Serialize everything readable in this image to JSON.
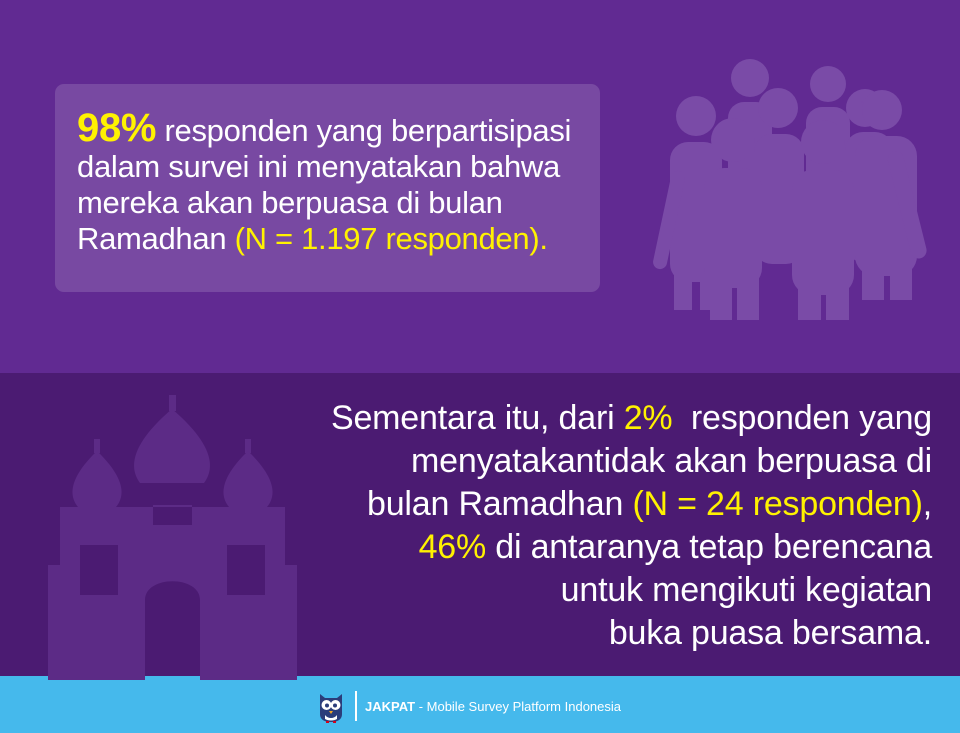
{
  "colors": {
    "top_background": "#612a92",
    "bottom_background": "#4b1b72",
    "footer_background": "#45b9ec",
    "highlight": "#fff200",
    "text": "#ffffff"
  },
  "top_card": {
    "percent": "98%",
    "text_1": " responden yang berpartisipasi dalam survei ini menyatakan bahwa mereka akan berpuasa di bulan Ramadhan ",
    "n_note": "(N = 1.197 responden)."
  },
  "bottom": {
    "line1_a": "Sementara itu, dari ",
    "line1_pct": "2%",
    "line1_b": "  responden yang",
    "line2": "menyatakantidak akan berpuasa di",
    "line3_a": "bulan Ramadhan ",
    "line3_n": "(N = 24 responden)",
    "line3_b": ",",
    "line4_pct": "46%",
    "line4_b": " di antaranya tetap berencana",
    "line5": "untuk mengikuti kegiatan",
    "line6": "buka puasa bersama."
  },
  "icons": {
    "people": "people-group-icon",
    "mosque": "mosque-icon",
    "logo": "owl-logo-icon"
  },
  "footer": {
    "brand": "JAKPAT",
    "tagline": " - Mobile Survey Platform Indonesia"
  }
}
